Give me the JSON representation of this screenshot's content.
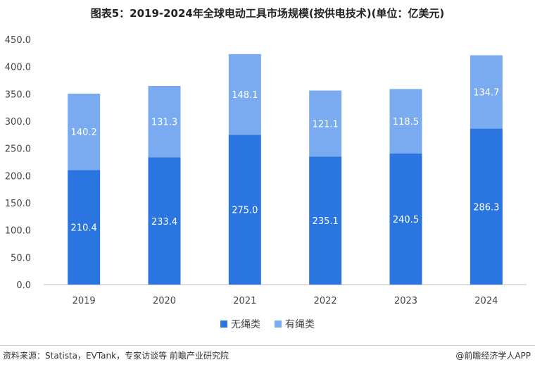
{
  "chart_data": {
    "type": "bar",
    "stacked": true,
    "title": "图表5：2019-2024年全球电动工具市场规模(按供电技术)(单位：亿美元)",
    "categories": [
      "2019",
      "2020",
      "2021",
      "2022",
      "2023",
      "2024"
    ],
    "series": [
      {
        "name": "无绳类",
        "values": [
          210.4,
          233.4,
          275.0,
          235.1,
          240.5,
          286.3
        ],
        "color": "#2a75e0"
      },
      {
        "name": "有绳类",
        "values": [
          140.2,
          131.3,
          148.1,
          121.1,
          118.5,
          134.7
        ],
        "color": "#7aaaf0"
      }
    ],
    "value_labels": [
      [
        "210.4",
        "233.4",
        "275.0",
        "235.1",
        "240.5",
        "286.3"
      ],
      [
        "140.2",
        "131.3",
        "148.1",
        "121.1",
        "118.5",
        "134.7"
      ]
    ],
    "yticks": [
      "0.0",
      "50.0",
      "100.0",
      "150.0",
      "200.0",
      "250.0",
      "300.0",
      "350.0",
      "400.0",
      "450.0"
    ],
    "ylim": [
      0,
      450
    ],
    "grid": false,
    "legend": "bottom"
  },
  "footer": {
    "source": "资料来源：Statista，EVTank，专家访谈等 前瞻产业研究院",
    "brand": "@前瞻经济学人APP"
  }
}
